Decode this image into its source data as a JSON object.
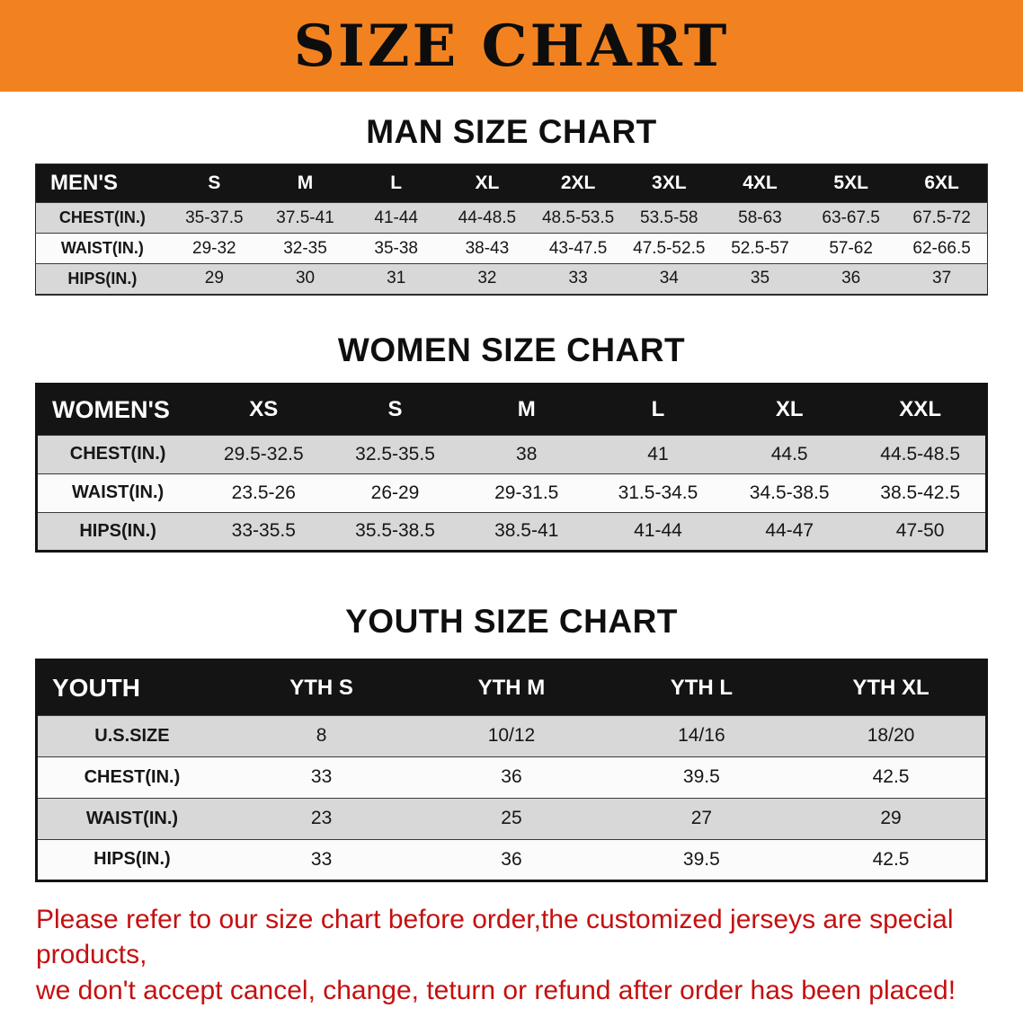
{
  "banner": {
    "title": "SIZE CHART",
    "bg_color": "#f28220"
  },
  "sections": [
    {
      "id": "men",
      "heading": "MAN SIZE CHART",
      "table": {
        "header": [
          "MEN'S",
          "S",
          "M",
          "L",
          "XL",
          "2XL",
          "3XL",
          "4XL",
          "5XL",
          "6XL"
        ],
        "rows": [
          [
            "CHEST(IN.)",
            "35-37.5",
            "37.5-41",
            "41-44",
            "44-48.5",
            "48.5-53.5",
            "53.5-58",
            "58-63",
            "63-67.5",
            "67.5-72"
          ],
          [
            "WAIST(IN.)",
            "29-32",
            "32-35",
            "35-38",
            "38-43",
            "43-47.5",
            "47.5-52.5",
            "52.5-57",
            "57-62",
            "62-66.5"
          ],
          [
            "HIPS(IN.)",
            "29",
            "30",
            "31",
            "32",
            "33",
            "34",
            "35",
            "36",
            "37"
          ]
        ]
      }
    },
    {
      "id": "women",
      "heading": "WOMEN SIZE CHART",
      "table": {
        "header": [
          "WOMEN'S",
          "XS",
          "S",
          "M",
          "L",
          "XL",
          "XXL"
        ],
        "rows": [
          [
            "CHEST(IN.)",
            "29.5-32.5",
            "32.5-35.5",
            "38",
            "41",
            "44.5",
            "44.5-48.5"
          ],
          [
            "WAIST(IN.)",
            "23.5-26",
            "26-29",
            "29-31.5",
            "31.5-34.5",
            "34.5-38.5",
            "38.5-42.5"
          ],
          [
            "HIPS(IN.)",
            "33-35.5",
            "35.5-38.5",
            "38.5-41",
            "41-44",
            "44-47",
            "47-50"
          ]
        ]
      }
    },
    {
      "id": "youth",
      "heading": "YOUTH SIZE CHART",
      "table": {
        "header": [
          "YOUTH",
          "YTH S",
          "YTH M",
          "YTH L",
          "YTH XL"
        ],
        "rows": [
          [
            "U.S.SIZE",
            "8",
            "10/12",
            "14/16",
            "18/20"
          ],
          [
            "CHEST(IN.)",
            "33",
            "36",
            "39.5",
            "42.5"
          ],
          [
            "WAIST(IN.)",
            "23",
            "25",
            "27",
            "29"
          ],
          [
            "HIPS(IN.)",
            "33",
            "36",
            "39.5",
            "42.5"
          ]
        ]
      }
    }
  ],
  "disclaimer": {
    "line1": "Please refer to our size chart before order,the customized jerseys are special products,",
    "line2": "we don't accept cancel, change, teturn or refund after order has been placed!",
    "color": "#c41010"
  }
}
